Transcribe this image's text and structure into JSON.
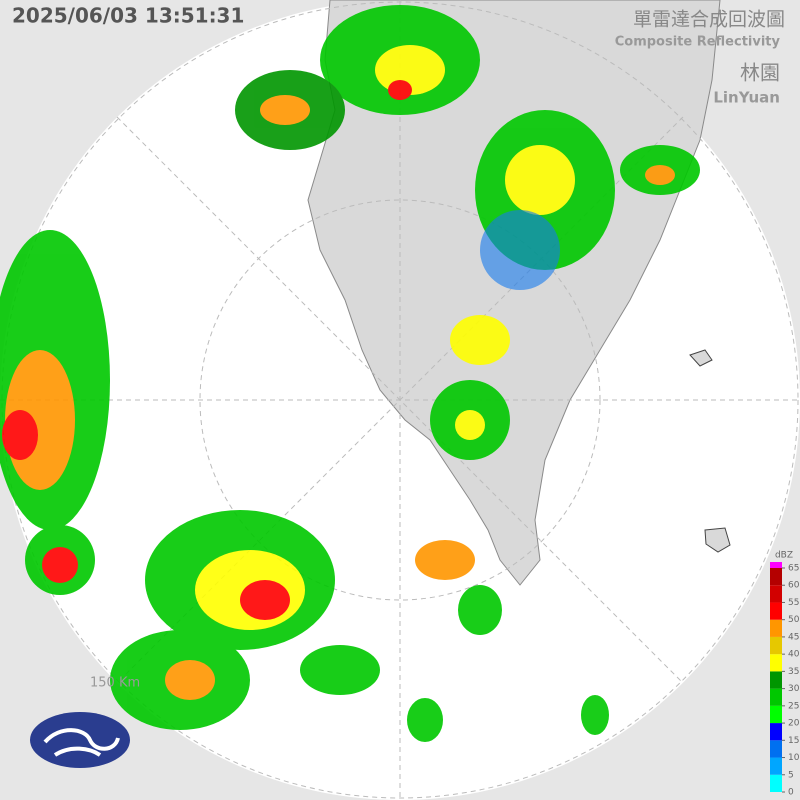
{
  "header": {
    "timestamp": "2025/06/03 13:51:31",
    "title": "單雷達合成回波圖",
    "subtitle": "Composite Reflectivity",
    "station": "林園",
    "station_en": "LinYuan"
  },
  "range_label": "150 Km",
  "colorbar": {
    "unit": "dBZ",
    "ticks": [
      0,
      5,
      10,
      15,
      20,
      25,
      30,
      35,
      40,
      45,
      50,
      55,
      60,
      65
    ],
    "colors": [
      "#00ffff",
      "#00a6ff",
      "#0070f0",
      "#0000ff",
      "#00ff00",
      "#00c800",
      "#009600",
      "#ffff00",
      "#e6c800",
      "#ff9600",
      "#ff0000",
      "#d20000",
      "#b40000",
      "#ff00ff"
    ]
  }
}
